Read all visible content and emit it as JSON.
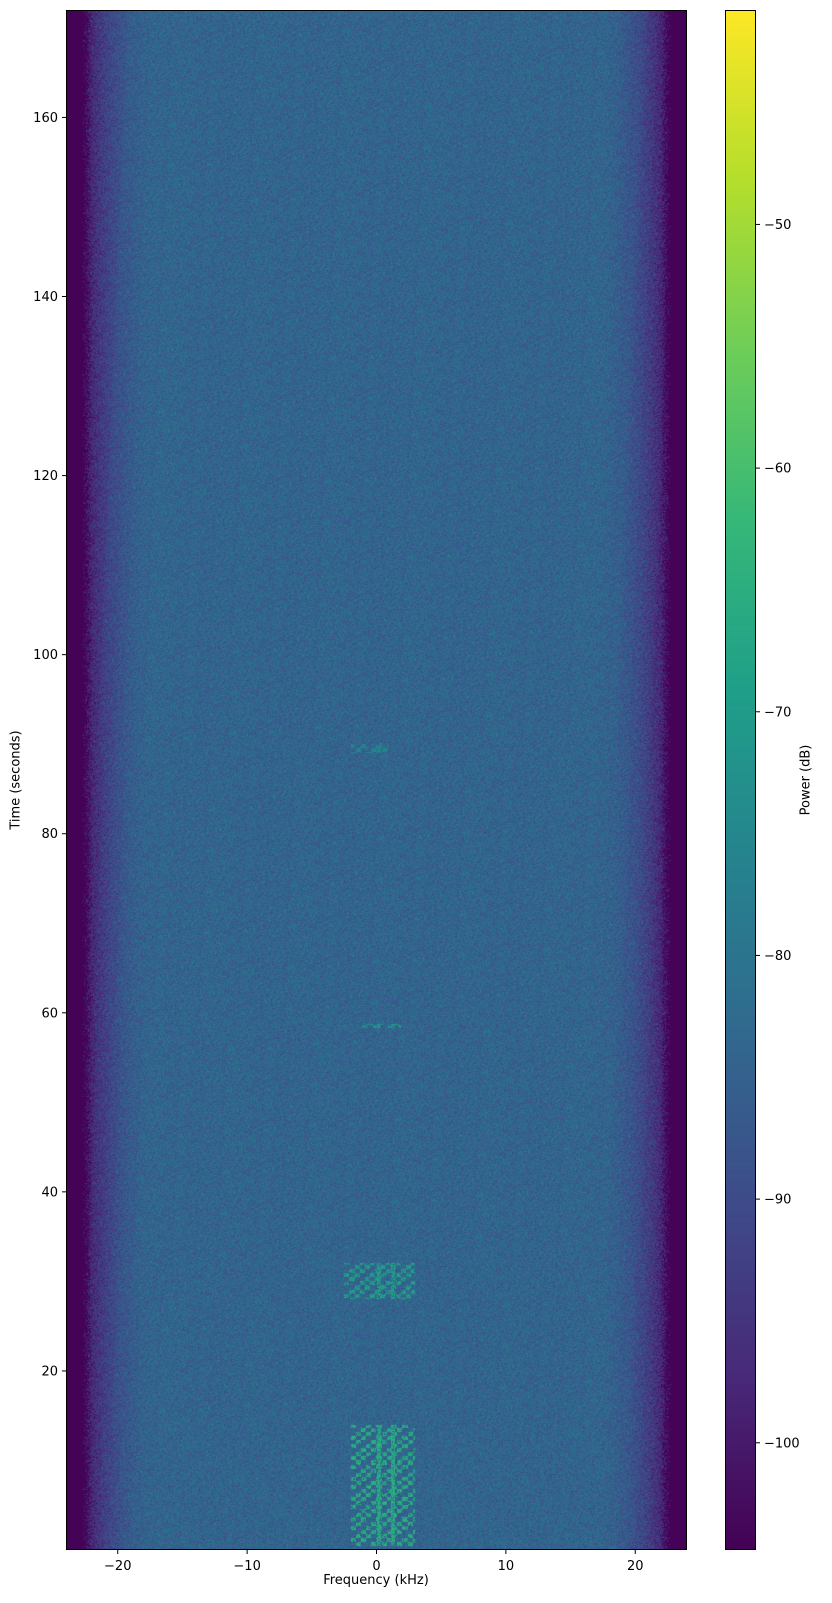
{
  "chart_data": {
    "type": "heatmap",
    "title": "",
    "xlabel": "Frequency (kHz)",
    "ylabel": "Time (seconds)",
    "colorbar_label": "Power (dB)",
    "colormap": "viridis",
    "xlim": [
      -24,
      24
    ],
    "ylim": [
      0,
      172
    ],
    "clim": [
      -104.4,
      -41.2
    ],
    "xticks": [
      -20,
      -10,
      0,
      10,
      20
    ],
    "xtick_labels": [
      "−20",
      "−10",
      "0",
      "10",
      "20"
    ],
    "yticks": [
      20,
      40,
      60,
      80,
      100,
      120,
      140,
      160
    ],
    "ytick_labels": [
      "20",
      "40",
      "60",
      "80",
      "100",
      "120",
      "140",
      "160"
    ],
    "cticks": [
      -50,
      -60,
      -70,
      -80,
      -90,
      -100
    ],
    "ctick_labels": [
      "−50",
      "−60",
      "−70",
      "−80",
      "−90",
      "−100"
    ],
    "noise_floor_db": -84,
    "band_edge_rolloff_khz": [
      17,
      22.5
    ],
    "out_of_band_db": -104,
    "signal_regions": [
      {
        "t": [
          0.5,
          14
        ],
        "f": [
          -2,
          3
        ],
        "peak_db": -62
      },
      {
        "t": [
          28,
          32
        ],
        "f": [
          -2.5,
          3
        ],
        "peak_db": -66
      },
      {
        "t": [
          58.3,
          58.8
        ],
        "f": [
          -1.5,
          2
        ],
        "peak_db": -68
      },
      {
        "t": [
          89,
          90
        ],
        "f": [
          -2,
          1
        ],
        "peak_db": -72
      }
    ],
    "grid": false
  }
}
